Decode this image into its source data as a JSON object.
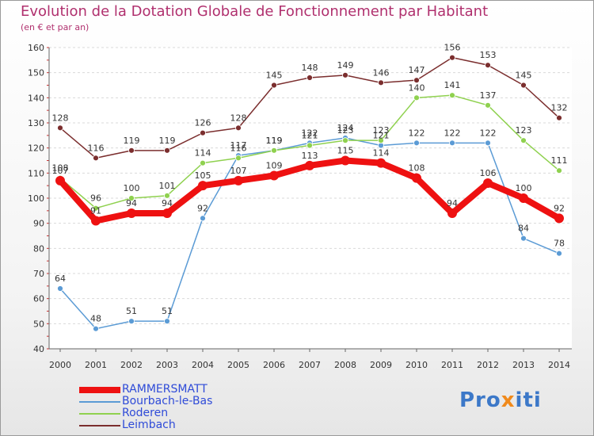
{
  "header": {
    "title": "Evolution de la Dotation Globale de Fonctionnement par Habitant",
    "subtitle": "(en € et par an)"
  },
  "logo": {
    "text": "Proxiti"
  },
  "colors": {
    "title": "#b0306e",
    "axis_text": "#333333",
    "grid": "#d9d9d9",
    "legend_text": "#2f4bd8"
  },
  "chart_data": {
    "type": "line",
    "title": "Evolution de la Dotation Globale de Fonctionnement par Habitant",
    "subtitle": "(en € et par an)",
    "x": [
      "2000",
      "2001",
      "2002",
      "2003",
      "2004",
      "2005",
      "2006",
      "2007",
      "2008",
      "2009",
      "2010",
      "2011",
      "2012",
      "2013",
      "2014"
    ],
    "ylim": [
      40,
      160
    ],
    "yticks": [
      40,
      50,
      60,
      70,
      80,
      90,
      100,
      110,
      120,
      130,
      140,
      150,
      160
    ],
    "grid": "horizontal dashed",
    "legend_position": "bottom-left",
    "series": [
      {
        "name": "RAMMERSMATT",
        "color": "#ee1111",
        "values": [
          107,
          91,
          94,
          94,
          105,
          107,
          109,
          113,
          115,
          114,
          108,
          94,
          106,
          100,
          92
        ]
      },
      {
        "name": "Bourbach-le-Bas",
        "color": "#5b9bd5",
        "values": [
          64,
          48,
          51,
          51,
          92,
          117,
          119,
          122,
          124,
          121,
          122,
          122,
          122,
          84,
          78
        ]
      },
      {
        "name": "Roderen",
        "color": "#8fd14f",
        "values": [
          108,
          96,
          100,
          101,
          114,
          116,
          119,
          121,
          123,
          123,
          140,
          141,
          137,
          123,
          111
        ]
      },
      {
        "name": "Leimbach",
        "color": "#7b2e2e",
        "values": [
          128,
          116,
          119,
          119,
          126,
          128,
          145,
          148,
          149,
          146,
          147,
          156,
          153,
          145,
          132
        ]
      }
    ]
  }
}
